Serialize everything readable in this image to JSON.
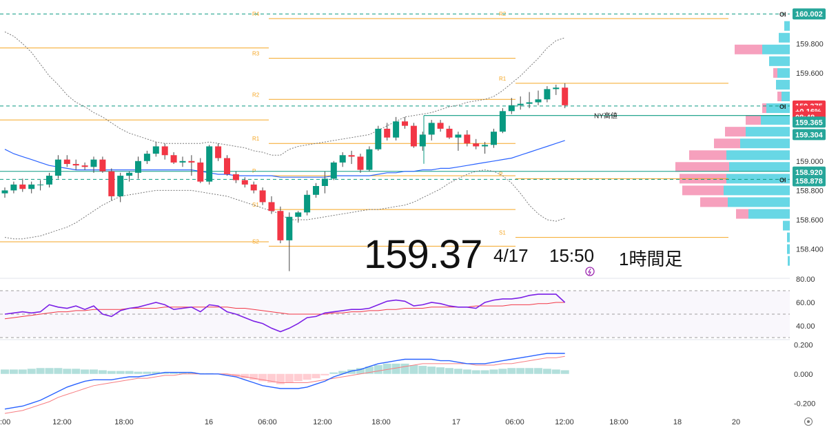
{
  "chart_data": {
    "type": "candlestick",
    "symbol_price_display": "159.37",
    "date_display": "4/17",
    "time_display": "15:50",
    "timeframe_display": "1時間足",
    "x_ticks": [
      ":00",
      "12:00",
      "18:00",
      "16",
      "06:00",
      "12:00",
      "18:00",
      "17",
      "06:00",
      "12:00",
      "18:00",
      "18",
      "20"
    ],
    "price_axis": {
      "ticks": [
        "160.002",
        "159.800",
        "159.600",
        "159.375",
        "159.000",
        "158.800",
        "158.600",
        "158.400"
      ],
      "range": [
        158.22,
        160.05
      ]
    },
    "price_labels": [
      {
        "text": "160.002",
        "price": 160.002,
        "bg": "#26a69a",
        "fg": "#ffffff"
      },
      {
        "text": "159.375",
        "price": 159.375,
        "bg": "#f23645",
        "fg": "#ffffff"
      },
      {
        "text": "+0.16%",
        "price": 159.34,
        "bg": "#f23645",
        "fg": "#ffffff"
      },
      {
        "text": "08:48",
        "price": 159.3,
        "bg": "#f23645",
        "fg": "#ffffff"
      },
      {
        "text": "159.365",
        "price": 159.265,
        "bg": "#26a69a",
        "fg": "#ffffff"
      },
      {
        "text": "159.304",
        "price": 159.18,
        "bg": "#26a69a",
        "fg": "#ffffff"
      },
      {
        "text": "158.920",
        "price": 158.925,
        "bg": "#26a69a",
        "fg": "#ffffff"
      },
      {
        "text": "158.878",
        "price": 158.865,
        "bg": "#26a69a",
        "fg": "#ffffff"
      }
    ],
    "oi_labels": [
      "OI",
      "OI",
      "OI"
    ],
    "pivot_levels": [
      {
        "label": "R4",
        "price": 159.97,
        "x1": 390,
        "x2": 748
      },
      {
        "label": "R3",
        "price": 159.7,
        "x1": 390,
        "x2": 748
      },
      {
        "label": "R2",
        "price": 159.42,
        "x1": 390,
        "x2": 748
      },
      {
        "label": "R1",
        "price": 159.12,
        "x1": 390,
        "x2": 748
      },
      {
        "label": "P",
        "price": 158.9,
        "x1": 390,
        "x2": 748
      },
      {
        "label": "S1",
        "price": 158.67,
        "x1": 390,
        "x2": 748
      },
      {
        "label": "S2",
        "price": 158.42,
        "x1": 390,
        "x2": 748
      },
      {
        "label": "R2",
        "price": 159.97,
        "x1": 748,
        "x2": 1057
      },
      {
        "label": "R1",
        "price": 159.53,
        "x1": 748,
        "x2": 1057
      },
      {
        "label": "P",
        "price": 158.88,
        "x1": 748,
        "x2": 1057
      },
      {
        "label": "S1",
        "price": 158.48,
        "x1": 748,
        "x2": 1057
      }
    ],
    "ny_high": {
      "label": "NY高値",
      "price": 159.31
    },
    "candles": [
      [
        158.78,
        158.82,
        158.75,
        158.8
      ],
      [
        158.8,
        158.86,
        158.78,
        158.84
      ],
      [
        158.84,
        158.88,
        158.79,
        158.81
      ],
      [
        158.81,
        158.86,
        158.78,
        158.84
      ],
      [
        158.84,
        158.87,
        158.8,
        158.84
      ],
      [
        158.84,
        158.92,
        158.82,
        158.9
      ],
      [
        158.9,
        159.04,
        158.88,
        159.01
      ],
      [
        159.01,
        159.04,
        158.96,
        158.98
      ],
      [
        158.98,
        159.01,
        158.94,
        158.97
      ],
      [
        158.97,
        158.99,
        158.94,
        158.96
      ],
      [
        158.96,
        159.03,
        158.92,
        159.01
      ],
      [
        159.01,
        159.03,
        158.92,
        158.93
      ],
      [
        158.93,
        158.95,
        158.73,
        158.76
      ],
      [
        158.76,
        158.92,
        158.72,
        158.9
      ],
      [
        158.9,
        158.93,
        158.86,
        158.92
      ],
      [
        158.92,
        159.03,
        158.88,
        159.0
      ],
      [
        159.0,
        159.07,
        158.98,
        159.05
      ],
      [
        159.05,
        159.13,
        159.03,
        159.1
      ],
      [
        159.1,
        159.12,
        159.01,
        159.04
      ],
      [
        159.04,
        159.06,
        158.98,
        158.99
      ],
      [
        158.99,
        159.03,
        158.96,
        159.0
      ],
      [
        159.0,
        159.04,
        158.9,
        158.99
      ],
      [
        158.99,
        159.02,
        158.85,
        158.86
      ],
      [
        158.86,
        159.11,
        158.84,
        159.1
      ],
      [
        159.1,
        159.12,
        159.0,
        159.02
      ],
      [
        159.02,
        159.04,
        158.9,
        158.91
      ],
      [
        158.91,
        158.93,
        158.85,
        158.87
      ],
      [
        158.87,
        158.89,
        158.82,
        158.84
      ],
      [
        158.84,
        158.86,
        158.78,
        158.8
      ],
      [
        158.8,
        158.82,
        158.7,
        158.72
      ],
      [
        158.72,
        158.76,
        158.64,
        158.66
      ],
      [
        158.66,
        158.69,
        158.44,
        158.46
      ],
      [
        158.46,
        158.65,
        158.25,
        158.62
      ],
      [
        158.62,
        158.66,
        158.58,
        158.65
      ],
      [
        158.65,
        158.8,
        158.63,
        158.77
      ],
      [
        158.77,
        158.85,
        158.75,
        158.83
      ],
      [
        158.83,
        158.93,
        158.78,
        158.88
      ],
      [
        158.88,
        159.0,
        158.87,
        158.99
      ],
      [
        158.99,
        159.06,
        158.96,
        159.04
      ],
      [
        159.04,
        159.07,
        158.98,
        159.03
      ],
      [
        159.03,
        159.05,
        158.92,
        158.94
      ],
      [
        158.94,
        159.1,
        158.93,
        159.08
      ],
      [
        159.08,
        159.24,
        159.07,
        159.22
      ],
      [
        159.22,
        159.26,
        159.14,
        159.16
      ],
      [
        159.16,
        159.3,
        159.14,
        159.27
      ],
      [
        159.27,
        159.3,
        159.22,
        159.24
      ],
      [
        159.24,
        159.26,
        159.09,
        159.1
      ],
      [
        159.1,
        159.2,
        159.07,
        159.18
      ],
      [
        159.18,
        159.28,
        159.14,
        159.26
      ],
      [
        159.26,
        159.28,
        159.2,
        159.22
      ],
      [
        159.22,
        159.24,
        159.15,
        159.16
      ],
      [
        159.16,
        159.2,
        159.07,
        159.18
      ],
      [
        159.18,
        159.21,
        159.1,
        159.12
      ],
      [
        159.12,
        159.15,
        159.08,
        159.1
      ],
      [
        159.1,
        159.13,
        159.05,
        159.11
      ],
      [
        159.11,
        159.22,
        159.09,
        159.2
      ],
      [
        159.2,
        159.36,
        159.19,
        159.34
      ],
      [
        159.34,
        159.43,
        159.32,
        159.38
      ],
      [
        159.38,
        159.44,
        159.35,
        159.39
      ],
      [
        159.39,
        159.47,
        159.36,
        159.4
      ],
      [
        159.4,
        159.48,
        159.38,
        159.42
      ],
      [
        159.42,
        159.51,
        159.4,
        159.49
      ],
      [
        159.49,
        159.52,
        159.45,
        159.5
      ],
      [
        159.5,
        159.53,
        159.36,
        159.38
      ]
    ],
    "bollinger": {
      "upper": [
        159.88,
        159.85,
        159.8,
        159.74,
        159.66,
        159.58,
        159.52,
        159.45,
        159.4,
        159.37,
        159.33,
        159.3,
        159.26,
        159.22,
        159.19,
        159.17,
        159.15,
        159.13,
        159.12,
        159.12,
        159.12,
        159.12,
        159.12,
        159.13,
        159.12,
        159.11,
        159.1,
        159.09,
        159.07,
        159.06,
        159.04,
        159.04,
        159.08,
        159.1,
        159.11,
        159.12,
        159.13,
        159.14,
        159.15,
        159.16,
        159.17,
        159.18,
        159.21,
        159.24,
        159.27,
        159.3,
        159.31,
        159.32,
        159.33,
        159.35,
        159.37,
        159.38,
        159.4,
        159.41,
        159.42,
        159.44,
        159.48,
        159.53,
        159.58,
        159.64,
        159.7,
        159.77,
        159.82,
        159.84
      ],
      "lower": [
        158.48,
        158.47,
        158.47,
        158.48,
        158.49,
        158.51,
        158.53,
        158.55,
        158.58,
        158.62,
        158.66,
        158.7,
        158.73,
        158.76,
        158.77,
        158.78,
        158.79,
        158.8,
        158.8,
        158.8,
        158.8,
        158.8,
        158.79,
        158.78,
        158.77,
        158.76,
        158.74,
        158.72,
        158.7,
        158.68,
        158.66,
        158.64,
        158.6,
        158.6,
        158.6,
        158.61,
        158.62,
        158.63,
        158.64,
        158.65,
        158.66,
        158.67,
        158.67,
        158.68,
        158.69,
        158.7,
        158.72,
        158.75,
        158.78,
        158.81,
        158.85,
        158.88,
        158.91,
        158.93,
        158.94,
        158.93,
        158.9,
        158.85,
        158.78,
        158.7,
        158.64,
        158.6,
        158.59,
        158.61
      ]
    },
    "moving_average": [
      159.08,
      159.05,
      159.03,
      159.01,
      158.99,
      158.97,
      158.96,
      158.95,
      158.94,
      158.94,
      158.94,
      158.94,
      158.94,
      158.94,
      158.94,
      158.94,
      158.94,
      158.94,
      158.94,
      158.94,
      158.94,
      158.94,
      158.93,
      158.92,
      158.91,
      158.91,
      158.9,
      158.9,
      158.9,
      158.9,
      158.9,
      158.89,
      158.89,
      158.89,
      158.89,
      158.89,
      158.89,
      158.9,
      158.9,
      158.9,
      158.9,
      158.9,
      158.91,
      158.92,
      158.92,
      158.93,
      158.93,
      158.94,
      158.94,
      158.95,
      158.95,
      158.96,
      158.97,
      158.98,
      158.99,
      159.0,
      159.01,
      159.02,
      159.04,
      159.06,
      159.08,
      159.1,
      159.12,
      159.14
    ],
    "rsi": {
      "ticks": [
        "80.00",
        "60.00",
        "40.00"
      ],
      "range": [
        30,
        80
      ],
      "series": [
        {
          "values": [
            50,
            51,
            52,
            51,
            52,
            58,
            56,
            55,
            57,
            54,
            57,
            50,
            48,
            53,
            55,
            56,
            58,
            60,
            58,
            54,
            55,
            56,
            52,
            58,
            57,
            52,
            50,
            47,
            44,
            42,
            38,
            35,
            38,
            42,
            47,
            48,
            51,
            52,
            53,
            54,
            54,
            55,
            58,
            61,
            62,
            61,
            57,
            58,
            60,
            59,
            57,
            56,
            56,
            55,
            60,
            62,
            63,
            63,
            64,
            66,
            67,
            67,
            67,
            60
          ]
        },
        {
          "values": [
            46,
            47,
            48,
            49,
            50,
            51,
            52,
            52,
            53,
            53,
            54,
            54,
            54,
            54,
            55,
            55,
            55,
            55,
            56,
            56,
            56,
            56,
            56,
            56,
            56,
            56,
            55,
            55,
            54,
            53,
            52,
            51,
            50,
            50,
            50,
            50,
            50,
            51,
            51,
            52,
            52,
            53,
            53,
            54,
            54,
            55,
            55,
            55,
            56,
            56,
            56,
            56,
            56,
            57,
            57,
            57,
            57,
            58,
            58,
            58,
            59,
            59,
            60,
            60
          ]
        }
      ]
    },
    "macd": {
      "ticks": [
        "0.200",
        "0.000",
        "-0.200"
      ],
      "range": [
        -0.26,
        0.22
      ],
      "histogram": [
        0.03,
        0.03,
        0.03,
        0.035,
        0.04,
        0.04,
        0.04,
        0.035,
        0.035,
        0.03,
        0.03,
        0.025,
        0.02,
        0.02,
        0.02,
        0.015,
        0.015,
        0.015,
        0.01,
        0.01,
        0.01,
        0.01,
        0.005,
        0.005,
        0.0,
        -0.01,
        -0.02,
        -0.03,
        -0.04,
        -0.05,
        -0.06,
        -0.07,
        -0.06,
        -0.05,
        -0.04,
        -0.03,
        -0.01,
        0.01,
        0.02,
        0.03,
        0.04,
        0.05,
        0.06,
        0.07,
        0.07,
        0.07,
        0.06,
        0.055,
        0.05,
        0.045,
        0.04,
        0.035,
        0.03,
        0.025,
        0.025,
        0.03,
        0.035,
        0.04,
        0.04,
        0.04,
        0.04,
        0.035,
        0.03,
        0.025
      ],
      "series": [
        {
          "values": [
            -0.24,
            -0.23,
            -0.22,
            -0.2,
            -0.18,
            -0.15,
            -0.12,
            -0.09,
            -0.07,
            -0.05,
            -0.04,
            -0.04,
            -0.04,
            -0.03,
            -0.02,
            -0.02,
            -0.01,
            0.0,
            0.01,
            0.01,
            0.01,
            0.01,
            0.0,
            0.0,
            0.0,
            -0.01,
            -0.02,
            -0.04,
            -0.06,
            -0.08,
            -0.09,
            -0.1,
            -0.1,
            -0.1,
            -0.09,
            -0.07,
            -0.05,
            -0.02,
            0.0,
            0.02,
            0.03,
            0.05,
            0.07,
            0.08,
            0.09,
            0.1,
            0.1,
            0.1,
            0.1,
            0.09,
            0.09,
            0.08,
            0.07,
            0.07,
            0.07,
            0.08,
            0.09,
            0.1,
            0.11,
            0.12,
            0.13,
            0.14,
            0.14,
            0.14
          ]
        },
        {
          "values": [
            -0.27,
            -0.26,
            -0.25,
            -0.23,
            -0.21,
            -0.19,
            -0.16,
            -0.14,
            -0.12,
            -0.1,
            -0.08,
            -0.07,
            -0.06,
            -0.05,
            -0.04,
            -0.03,
            -0.03,
            -0.02,
            -0.01,
            -0.01,
            0.0,
            0.0,
            0.0,
            0.0,
            0.0,
            0.0,
            -0.01,
            -0.02,
            -0.03,
            -0.04,
            -0.05,
            -0.06,
            -0.06,
            -0.06,
            -0.06,
            -0.05,
            -0.04,
            -0.03,
            -0.02,
            -0.01,
            0.0,
            0.01,
            0.02,
            0.03,
            0.04,
            0.05,
            0.06,
            0.07,
            0.07,
            0.07,
            0.07,
            0.07,
            0.07,
            0.06,
            0.06,
            0.06,
            0.07,
            0.07,
            0.08,
            0.09,
            0.1,
            0.11,
            0.11,
            0.12
          ]
        }
      ]
    },
    "volume_profile": [
      {
        "price": 159.92,
        "pink": 0,
        "blue": 8
      },
      {
        "price": 159.84,
        "pink": 0,
        "blue": 16
      },
      {
        "price": 159.76,
        "pink": 40,
        "blue": 40
      },
      {
        "price": 159.68,
        "pink": 0,
        "blue": 30
      },
      {
        "price": 159.6,
        "pink": 6,
        "blue": 18
      },
      {
        "price": 159.52,
        "pink": 0,
        "blue": 20
      },
      {
        "price": 159.44,
        "pink": 6,
        "blue": 12
      },
      {
        "price": 159.36,
        "pink": 6,
        "blue": 34
      },
      {
        "price": 159.28,
        "pink": 22,
        "blue": 42
      },
      {
        "price": 159.2,
        "pink": 30,
        "blue": 64
      },
      {
        "price": 159.12,
        "pink": 38,
        "blue": 72
      },
      {
        "price": 159.04,
        "pink": 54,
        "blue": 92
      },
      {
        "price": 158.96,
        "pink": 78,
        "blue": 88
      },
      {
        "price": 158.88,
        "pink": 68,
        "blue": 92
      },
      {
        "price": 158.8,
        "pink": 60,
        "blue": 96
      },
      {
        "price": 158.72,
        "pink": 40,
        "blue": 90
      },
      {
        "price": 158.64,
        "pink": 18,
        "blue": 60
      },
      {
        "price": 158.56,
        "pink": 0,
        "blue": 10
      },
      {
        "price": 158.48,
        "pink": 0,
        "blue": 4
      },
      {
        "price": 158.4,
        "pink": 0,
        "blue": 4
      },
      {
        "price": 158.32,
        "pink": 0,
        "blue": 3
      }
    ],
    "colors": {
      "up": "#089981",
      "down": "#f23645",
      "pivot": "#f5a623",
      "bb": "#777777",
      "ma": "#2962ff",
      "rsi": "#7b1fe6",
      "rsi_ma": "#f23645",
      "macd": "#2962ff",
      "signal": "#f77c80",
      "hist_pos": "#b2dfdb",
      "hist_neg": "#ffcdd2",
      "vp_pink": "#f48fb1",
      "vp_blue": "#4dd0e1",
      "teal": "#089981"
    }
  }
}
